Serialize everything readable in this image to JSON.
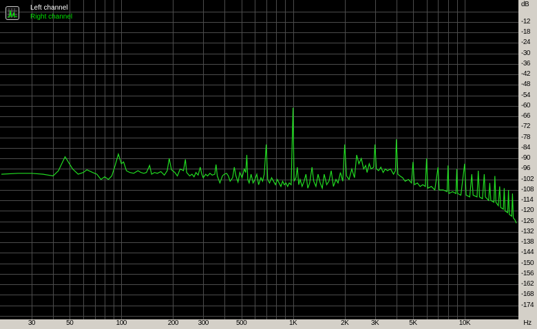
{
  "chart_data": {
    "type": "line",
    "xscale": "log",
    "xlim": [
      20,
      20000
    ],
    "ylim": [
      -181,
      0
    ],
    "xunit": "Hz",
    "yunit": "dB",
    "grid": true,
    "legend_position": "top-left",
    "xticks": [
      {
        "v": 30,
        "l": "30"
      },
      {
        "v": 50,
        "l": "50"
      },
      {
        "v": 100,
        "l": "100"
      },
      {
        "v": 200,
        "l": "200"
      },
      {
        "v": 300,
        "l": "300"
      },
      {
        "v": 500,
        "l": "500"
      },
      {
        "v": 1000,
        "l": "1K"
      },
      {
        "v": 2000,
        "l": "2K"
      },
      {
        "v": 3000,
        "l": "3K"
      },
      {
        "v": 5000,
        "l": "5K"
      },
      {
        "v": 10000,
        "l": "10K"
      }
    ],
    "yticks": [
      "-12",
      "-18",
      "-24",
      "-30",
      "-36",
      "-42",
      "-48",
      "-54",
      "-60",
      "-66",
      "-72",
      "-78",
      "-84",
      "-90",
      "-96",
      "-102",
      "-108",
      "-114",
      "-120",
      "-126",
      "-132",
      "-138",
      "-144",
      "-150",
      "-156",
      "-162",
      "-168",
      "-174"
    ],
    "legend": [
      {
        "name": "Left channel",
        "color": "#ffffff"
      },
      {
        "name": "Right channel",
        "color": "#00e000"
      }
    ],
    "series": [
      {
        "name": "Right channel",
        "color": "#22dd22",
        "points": [
          [
            20,
            -99
          ],
          [
            25,
            -98.5
          ],
          [
            30,
            -98.5
          ],
          [
            35,
            -99
          ],
          [
            40,
            -100
          ],
          [
            43,
            -97
          ],
          [
            47,
            -89
          ],
          [
            52,
            -96
          ],
          [
            56,
            -99
          ],
          [
            60,
            -98
          ],
          [
            63,
            -96.5
          ],
          [
            68,
            -98
          ],
          [
            72,
            -99
          ],
          [
            76,
            -102
          ],
          [
            80,
            -100.5
          ],
          [
            84,
            -102
          ],
          [
            88,
            -100
          ],
          [
            92,
            -94
          ],
          [
            96,
            -87.5
          ],
          [
            100,
            -93
          ],
          [
            103,
            -92
          ],
          [
            107,
            -97
          ],
          [
            112,
            -98
          ],
          [
            118,
            -98.5
          ],
          [
            125,
            -97
          ],
          [
            130,
            -98
          ],
          [
            135,
            -98.5
          ],
          [
            140,
            -98
          ],
          [
            146,
            -94
          ],
          [
            150,
            -99
          ],
          [
            156,
            -98
          ],
          [
            162,
            -98.5
          ],
          [
            170,
            -97.5
          ],
          [
            178,
            -99.5
          ],
          [
            185,
            -97
          ],
          [
            190,
            -90
          ],
          [
            196,
            -96.5
          ],
          [
            205,
            -98
          ],
          [
            212,
            -100
          ],
          [
            220,
            -96
          ],
          [
            230,
            -97
          ],
          [
            236,
            -90.5
          ],
          [
            240,
            -98
          ],
          [
            250,
            -100
          ],
          [
            258,
            -99
          ],
          [
            265,
            -100.5
          ],
          [
            272,
            -98
          ],
          [
            280,
            -99.5
          ],
          [
            288,
            -95
          ],
          [
            294,
            -99
          ],
          [
            300,
            -101
          ],
          [
            310,
            -99
          ],
          [
            318,
            -100
          ],
          [
            328,
            -98.5
          ],
          [
            338,
            -99.5
          ],
          [
            350,
            -99
          ],
          [
            356,
            -93.5
          ],
          [
            362,
            -100
          ],
          [
            375,
            -104
          ],
          [
            388,
            -100
          ],
          [
            398,
            -99
          ],
          [
            410,
            -98.5
          ],
          [
            420,
            -100
          ],
          [
            430,
            -103
          ],
          [
            445,
            -101
          ],
          [
            455,
            -95
          ],
          [
            465,
            -100
          ],
          [
            478,
            -103.5
          ],
          [
            490,
            -98
          ],
          [
            505,
            -101
          ],
          [
            520,
            -96
          ],
          [
            530,
            -98
          ],
          [
            538,
            -88
          ],
          [
            545,
            -102
          ],
          [
            555,
            -104
          ],
          [
            570,
            -99
          ],
          [
            585,
            -104
          ],
          [
            600,
            -102
          ],
          [
            615,
            -99
          ],
          [
            630,
            -105
          ],
          [
            650,
            -101
          ],
          [
            665,
            -103
          ],
          [
            680,
            -99
          ],
          [
            698,
            -82
          ],
          [
            712,
            -102
          ],
          [
            730,
            -104
          ],
          [
            750,
            -101
          ],
          [
            770,
            -103
          ],
          [
            790,
            -105
          ],
          [
            810,
            -102
          ],
          [
            830,
            -104
          ],
          [
            850,
            -106
          ],
          [
            870,
            -103
          ],
          [
            890,
            -105
          ],
          [
            910,
            -104
          ],
          [
            930,
            -106
          ],
          [
            950,
            -104
          ],
          [
            975,
            -105
          ],
          [
            1000,
            -61
          ],
          [
            1015,
            -103
          ],
          [
            1040,
            -101
          ],
          [
            1060,
            -95
          ],
          [
            1080,
            -105
          ],
          [
            1100,
            -102
          ],
          [
            1130,
            -106
          ],
          [
            1160,
            -103
          ],
          [
            1190,
            -99
          ],
          [
            1220,
            -107
          ],
          [
            1250,
            -104
          ],
          [
            1290,
            -95
          ],
          [
            1320,
            -103
          ],
          [
            1360,
            -106
          ],
          [
            1400,
            -99
          ],
          [
            1440,
            -104
          ],
          [
            1480,
            -107
          ],
          [
            1520,
            -99
          ],
          [
            1570,
            -105
          ],
          [
            1620,
            -103
          ],
          [
            1670,
            -97
          ],
          [
            1720,
            -106
          ],
          [
            1780,
            -102
          ],
          [
            1830,
            -104
          ],
          [
            1890,
            -98
          ],
          [
            1950,
            -103
          ],
          [
            2000,
            -82
          ],
          [
            2050,
            -100
          ],
          [
            2120,
            -102
          ],
          [
            2200,
            -96
          ],
          [
            2280,
            -101
          ],
          [
            2350,
            -88
          ],
          [
            2420,
            -93
          ],
          [
            2500,
            -90
          ],
          [
            2580,
            -96
          ],
          [
            2650,
            -94
          ],
          [
            2700,
            -98
          ],
          [
            2780,
            -93
          ],
          [
            2850,
            -96
          ],
          [
            2950,
            -95
          ],
          [
            3000,
            -82
          ],
          [
            3060,
            -96
          ],
          [
            3150,
            -97
          ],
          [
            3250,
            -95
          ],
          [
            3350,
            -98
          ],
          [
            3450,
            -96
          ],
          [
            3550,
            -97
          ],
          [
            3700,
            -96
          ],
          [
            3850,
            -99
          ],
          [
            3950,
            -97
          ],
          [
            4000,
            -79
          ],
          [
            4080,
            -99
          ],
          [
            4200,
            -100
          ],
          [
            4350,
            -101
          ],
          [
            4500,
            -103
          ],
          [
            4700,
            -102
          ],
          [
            4900,
            -104
          ],
          [
            5000,
            -92
          ],
          [
            5100,
            -105
          ],
          [
            5300,
            -104
          ],
          [
            5500,
            -106
          ],
          [
            5700,
            -105
          ],
          [
            5900,
            -106
          ],
          [
            6000,
            -90
          ],
          [
            6100,
            -107
          ],
          [
            6400,
            -106
          ],
          [
            6700,
            -108
          ],
          [
            7000,
            -95
          ],
          [
            7100,
            -108
          ],
          [
            7500,
            -108
          ],
          [
            7900,
            -109
          ],
          [
            8000,
            -94
          ],
          [
            8100,
            -110
          ],
          [
            8500,
            -109
          ],
          [
            8900,
            -110
          ],
          [
            9000,
            -96
          ],
          [
            9100,
            -110
          ],
          [
            9500,
            -111
          ],
          [
            10000,
            -93
          ],
          [
            10200,
            -111
          ],
          [
            10700,
            -112
          ],
          [
            11000,
            -99
          ],
          [
            11200,
            -111
          ],
          [
            11800,
            -112
          ],
          [
            12000,
            -97
          ],
          [
            12200,
            -112
          ],
          [
            12700,
            -113
          ],
          [
            13000,
            -99
          ],
          [
            13200,
            -112
          ],
          [
            13800,
            -114
          ],
          [
            14000,
            -104
          ],
          [
            14200,
            -114
          ],
          [
            14800,
            -115
          ],
          [
            15000,
            -100
          ],
          [
            15200,
            -115
          ],
          [
            15700,
            -117
          ],
          [
            16000,
            -106
          ],
          [
            16200,
            -118
          ],
          [
            16800,
            -119
          ],
          [
            17000,
            -107
          ],
          [
            17200,
            -120
          ],
          [
            17800,
            -121
          ],
          [
            18000,
            -108
          ],
          [
            18200,
            -122
          ],
          [
            18800,
            -123
          ],
          [
            19000,
            -110
          ],
          [
            19200,
            -124
          ],
          [
            19600,
            -125
          ],
          [
            20000,
            -127
          ]
        ]
      }
    ]
  }
}
